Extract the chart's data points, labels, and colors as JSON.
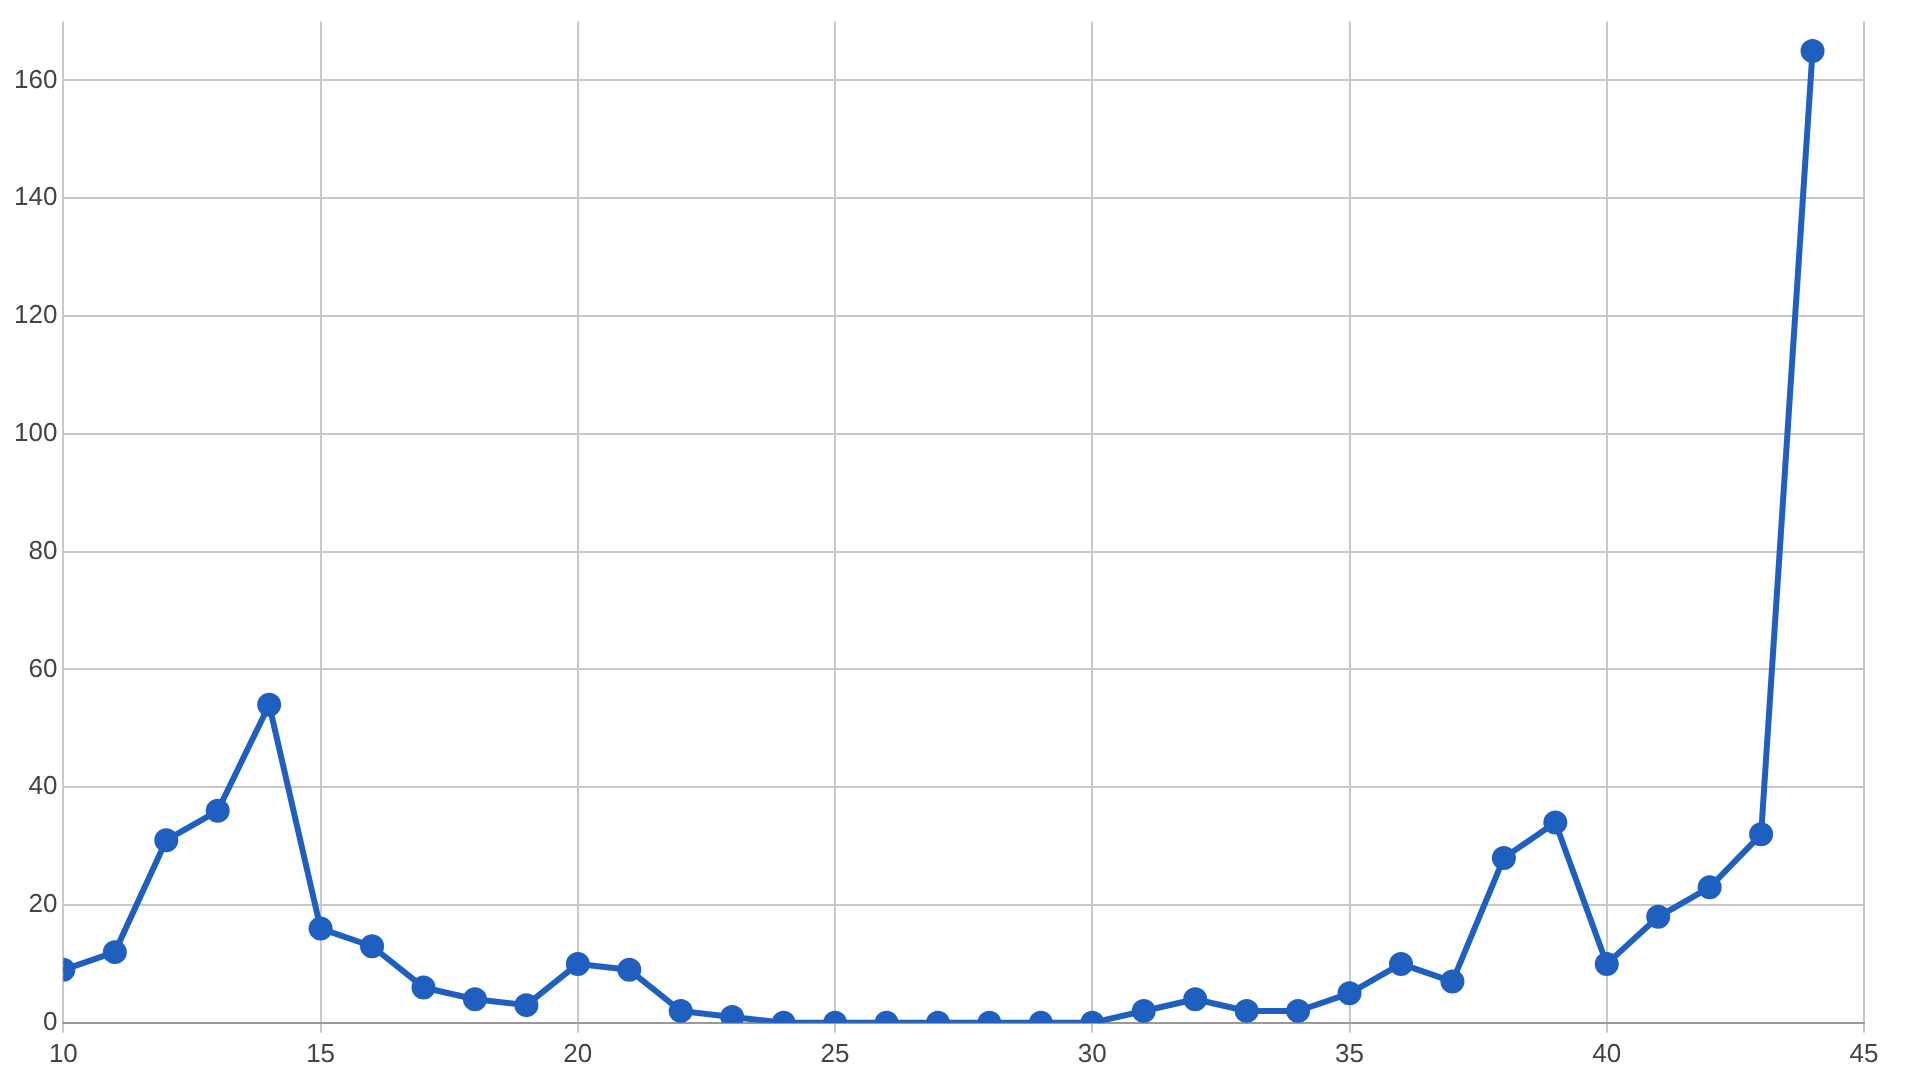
{
  "chart_data": {
    "type": "line",
    "x": [
      10,
      11,
      12,
      13,
      14,
      15,
      16,
      17,
      18,
      19,
      20,
      21,
      22,
      23,
      24,
      25,
      26,
      27,
      28,
      29,
      30,
      31,
      32,
      33,
      34,
      35,
      36,
      37,
      38,
      39,
      40,
      41,
      42,
      43,
      44
    ],
    "series": [
      {
        "color": "#1f5fc0",
        "values": [
          9,
          12,
          31,
          36,
          54,
          16,
          13,
          6,
          4,
          3,
          10,
          9,
          2,
          1,
          0,
          0,
          0,
          0,
          0,
          0,
          0,
          2,
          4,
          2,
          2,
          5,
          10,
          7,
          28,
          34,
          10,
          18,
          23,
          32,
          165
        ]
      }
    ],
    "xlim": [
      10,
      45
    ],
    "xticks": [
      10,
      15,
      20,
      25,
      30,
      35,
      40,
      45
    ],
    "ylim": [
      0,
      170
    ],
    "yticks": [
      0,
      20,
      40,
      60,
      80,
      100,
      120,
      140,
      160
    ],
    "grid": true,
    "legend": false,
    "marker": "circle",
    "line_style": "solid"
  }
}
